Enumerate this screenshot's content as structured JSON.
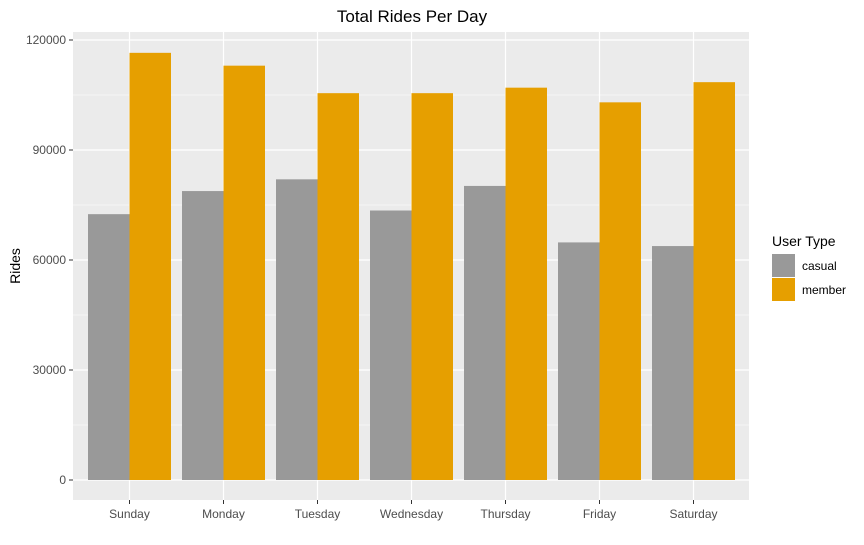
{
  "chart_data": {
    "type": "bar",
    "title": "Total Rides Per Day",
    "xlabel": "",
    "ylabel": "Rides",
    "categories": [
      "Sunday",
      "Monday",
      "Tuesday",
      "Wednesday",
      "Thursday",
      "Friday",
      "Saturday"
    ],
    "series": [
      {
        "name": "casual",
        "values": [
          72500,
          78800,
          82000,
          73500,
          80200,
          64800,
          63800
        ],
        "color": "#999999"
      },
      {
        "name": "member",
        "values": [
          116500,
          113000,
          105500,
          105500,
          107000,
          103000,
          108500
        ],
        "color": "#E69F00"
      }
    ],
    "ylim": [
      0,
      120000
    ],
    "yticks": [
      0,
      30000,
      60000,
      90000,
      120000
    ],
    "ytick_labels": [
      "0",
      "30000",
      "60000",
      "90000",
      "120000"
    ],
    "grid": true,
    "panel_background": "#EBEBEB",
    "gridline_color": "#FFFFFF",
    "legend": {
      "title": "User Type",
      "position": "right"
    }
  }
}
